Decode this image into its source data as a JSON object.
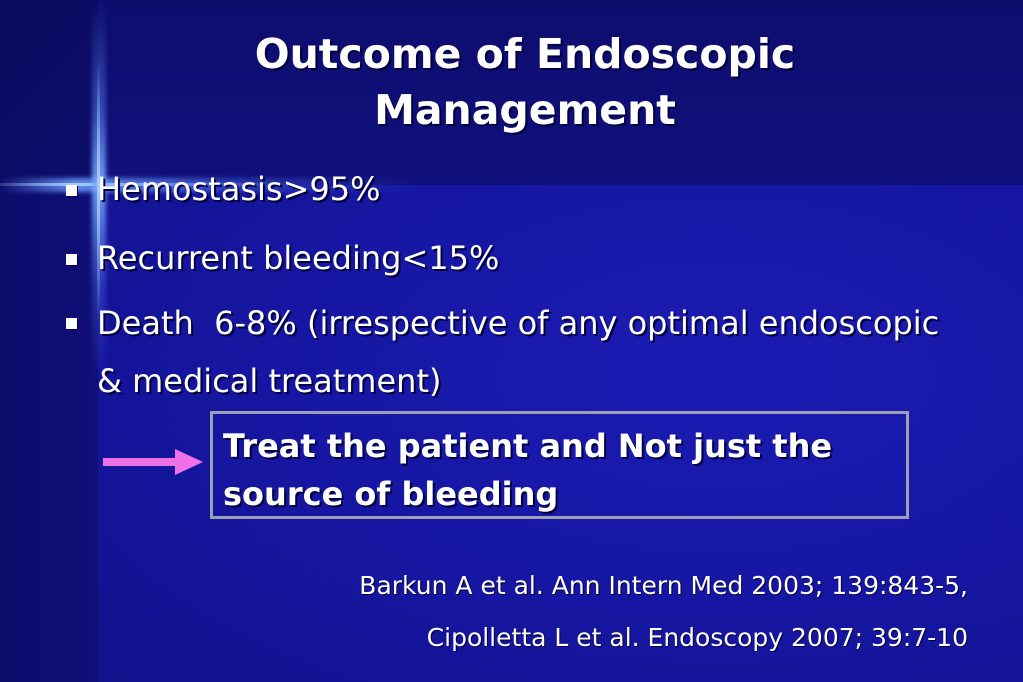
{
  "slide": {
    "title_lines": [
      "Outcome of Endoscopic",
      "Management"
    ],
    "bullets": [
      "Hemostasis>95%",
      "Recurrent bleeding<15%",
      "Death  6-8% (irrespective of any optimal endoscopic & medical treatment)"
    ],
    "callout": {
      "text": "Treat the patient and Not just the source of bleeding",
      "arrow_icon": "arrow-right-icon",
      "arrow_color": "#f070e8",
      "border_color": "#9aa0b8"
    },
    "references": [
      "Barkun A et al. Ann Intern Med 2003; 139:843-5,",
      "Cipolletta L et al. Endoscopy 2007; 39:7-10"
    ],
    "colors": {
      "background": "#1515a0",
      "text": "#ffffff"
    }
  }
}
